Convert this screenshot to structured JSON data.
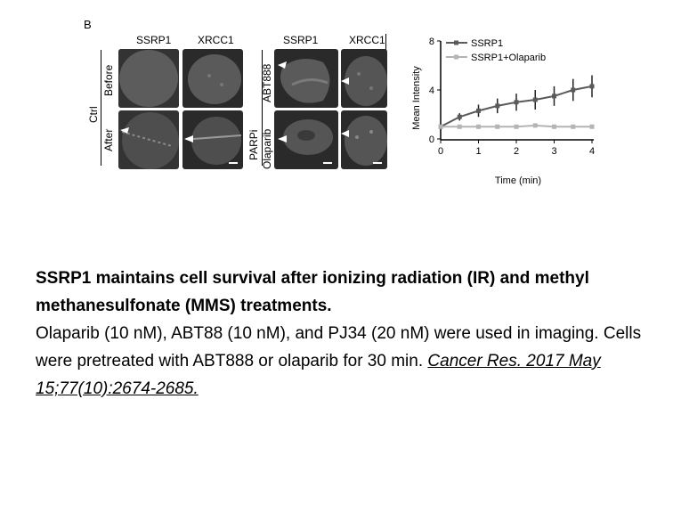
{
  "figure": {
    "panel_letter": "B",
    "left_group": {
      "col_headers": [
        "SSRP1",
        "XRCC1"
      ],
      "group_label": "Ctrl",
      "row_labels": [
        "Before",
        "After"
      ]
    },
    "right_group": {
      "col_headers": [
        "SSRP1",
        "XRCC1"
      ],
      "group_label": "PARPi",
      "row_labels": [
        "ABT888",
        "Olaparib"
      ]
    }
  },
  "chart_data": {
    "type": "line",
    "xlabel": "Time (min)",
    "ylabel": "Mean Intensity",
    "xlim": [
      0,
      4
    ],
    "ylim": [
      0,
      8
    ],
    "xticks": [
      0,
      1,
      2,
      3,
      4
    ],
    "yticks": [
      0,
      4,
      8
    ],
    "legend_position": "top-right",
    "series": [
      {
        "name": "SSRP1",
        "color": "#5a5a5a",
        "x": [
          0,
          0.5,
          1,
          1.5,
          2,
          2.5,
          3,
          3.5,
          4
        ],
        "y": [
          1.0,
          1.8,
          2.3,
          2.7,
          3.0,
          3.2,
          3.5,
          4.0,
          4.3
        ],
        "err": [
          0.1,
          0.3,
          0.5,
          0.6,
          0.7,
          0.8,
          0.8,
          0.9,
          0.9
        ]
      },
      {
        "name": "SSRP1+Olaparib",
        "color": "#b4b4b4",
        "x": [
          0,
          0.5,
          1,
          1.5,
          2,
          2.5,
          3,
          3.5,
          4
        ],
        "y": [
          1.0,
          1.0,
          1.0,
          1.0,
          1.0,
          1.1,
          1.0,
          1.0,
          1.0
        ],
        "err": [
          0,
          0,
          0,
          0,
          0,
          0,
          0,
          0,
          0
        ]
      }
    ]
  },
  "caption": {
    "title": "SSRP1 maintains cell survival after ionizing radiation (IR) and methyl methanesulfonate (MMS) treatments.",
    "body": "Olaparib (10 nM), ABT88 (10 nM), and PJ34 (20 nM) were used in imaging. Cells were pretreated with ABT888 or olaparib for 30 min.",
    "citation": "Cancer Res. 2017 May 15;77(10):2674-2685."
  }
}
